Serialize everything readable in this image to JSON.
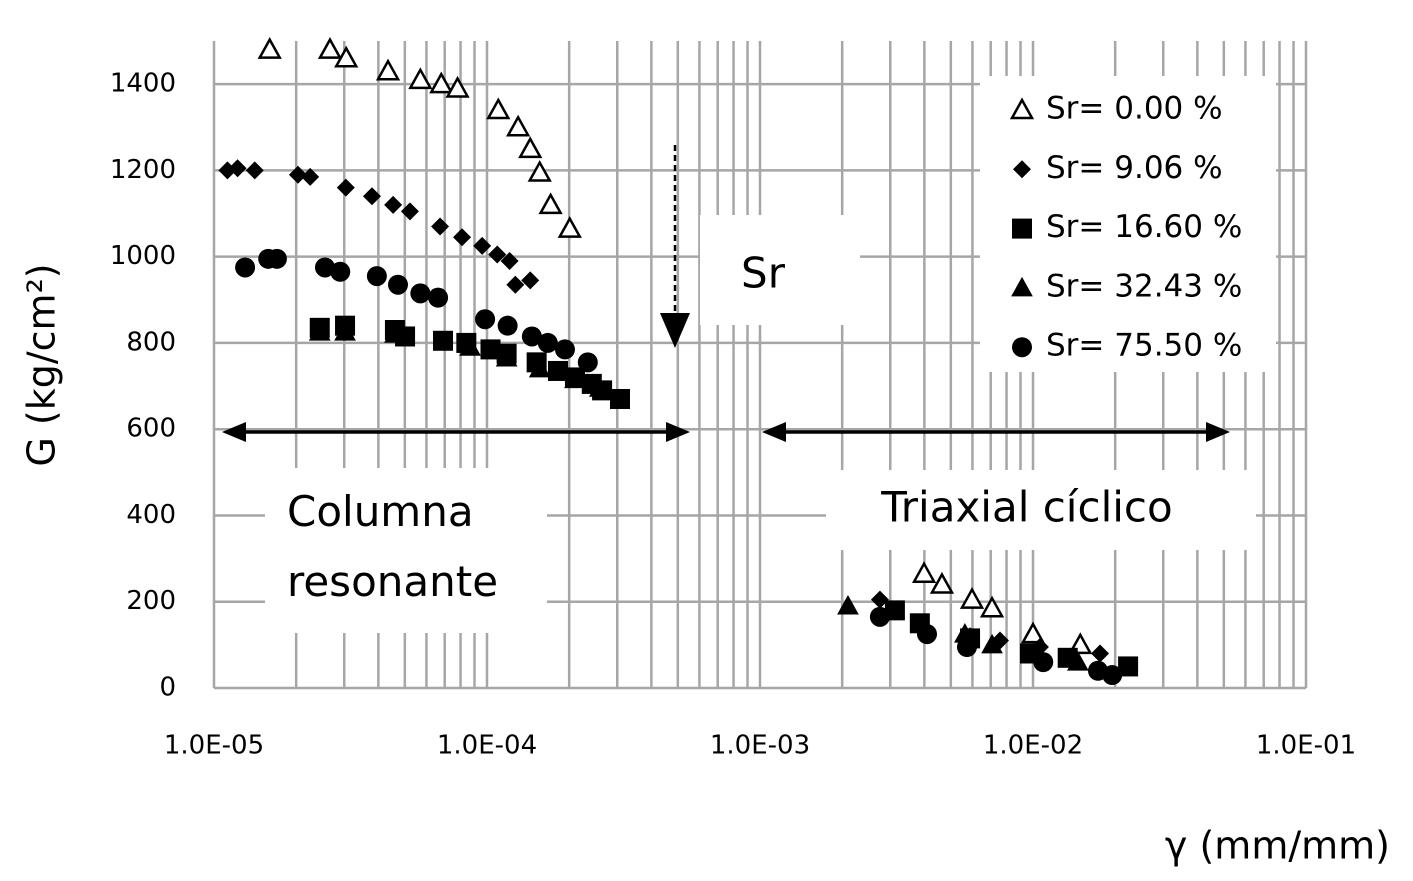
{
  "chart_data": {
    "type": "scatter",
    "xscale": "log",
    "grid": true,
    "legend": "top-right",
    "xlabel": "γ (mm/mm)",
    "ylabel": "G (kg/cm²)",
    "xlim": [
      1e-05,
      0.1
    ],
    "ylim": [
      0,
      1500
    ],
    "xticks": [
      {
        "value": 1e-05,
        "label": "1.0E-05"
      },
      {
        "value": 0.0001,
        "label": "1.0E-04"
      },
      {
        "value": 0.001,
        "label": "1.0E-03"
      },
      {
        "value": 0.01,
        "label": "1.0E-02"
      },
      {
        "value": 0.1,
        "label": "1.0E-01"
      }
    ],
    "yticks": [
      0,
      200,
      400,
      600,
      800,
      1000,
      1200,
      1400
    ],
    "annotations": [
      "Sr",
      "Columna resonante",
      "Triaxial cíclico"
    ],
    "series": [
      {
        "name": "Sr= 0.00 %",
        "color": "#000000",
        "marker": "triangle-open",
        "x": [
          1.6e-05,
          2.66e-05,
          3.05e-05,
          4.34e-05,
          5.7e-05,
          6.8e-05,
          7.8e-05,
          0.00011,
          0.00013,
          0.000144,
          0.000156,
          0.000171,
          0.000201,
          0.00399,
          0.00464,
          0.00598,
          0.00708,
          0.01,
          0.0149
        ],
        "values": [
          1480,
          1480,
          1460,
          1430,
          1410,
          1400,
          1390,
          1340,
          1300,
          1250,
          1195,
          1120,
          1065,
          265,
          240,
          205,
          185,
          125,
          100
        ]
      },
      {
        "name": "Sr= 9.06 %",
        "color": "#000000",
        "marker": "diamond",
        "x": [
          1.12e-05,
          1.22e-05,
          1.41e-05,
          2.03e-05,
          2.25e-05,
          3.04e-05,
          3.79e-05,
          4.53e-05,
          5.22e-05,
          6.73e-05,
          8.1e-05,
          9.6e-05,
          0.000109,
          0.000121,
          0.000127,
          0.000144,
          0.00275,
          0.00588,
          0.00757,
          0.0106,
          0.0176
        ],
        "values": [
          1200,
          1205,
          1200,
          1190,
          1185,
          1160,
          1140,
          1120,
          1105,
          1070,
          1045,
          1025,
          1005,
          990,
          935,
          945,
          205,
          120,
          110,
          95,
          80
        ]
      },
      {
        "name": "Sr= 16.60 %",
        "color": "#000000",
        "marker": "square",
        "x": [
          2.44e-05,
          3.02e-05,
          4.6e-05,
          5.01e-05,
          6.9e-05,
          8.4e-05,
          0.000103,
          0.000118,
          0.000152,
          0.000182,
          0.00021,
          0.000242,
          0.000264,
          0.000307,
          0.00312,
          0.00385,
          0.00588,
          0.00975,
          0.0134,
          0.0223
        ],
        "values": [
          835,
          840,
          830,
          815,
          805,
          800,
          785,
          775,
          755,
          735,
          720,
          705,
          690,
          670,
          180,
          150,
          115,
          80,
          70,
          50
        ]
      },
      {
        "name": "Sr= 32.43 %",
        "color": "#000000",
        "marker": "triangle",
        "x": [
          2.44e-05,
          3.02e-05,
          4.6e-05,
          8.67e-05,
          0.000118,
          0.000156,
          0.00021,
          0.000259,
          0.0021,
          0.00563,
          0.00708,
          0.0146
        ],
        "values": [
          825,
          825,
          820,
          790,
          765,
          740,
          715,
          695,
          190,
          125,
          100,
          60
        ]
      },
      {
        "name": "Sr= 75.50 %",
        "color": "#000000",
        "marker": "circle",
        "x": [
          1.3e-05,
          1.58e-05,
          1.7e-05,
          2.55e-05,
          2.9e-05,
          3.95e-05,
          4.72e-05,
          5.7e-05,
          6.62e-05,
          9.84e-05,
          0.000119,
          0.000146,
          0.000167,
          0.000193,
          0.000234,
          0.00275,
          0.00409,
          0.00573,
          0.0109,
          0.0173,
          0.0195
        ],
        "values": [
          975,
          995,
          995,
          975,
          965,
          955,
          935,
          915,
          905,
          855,
          840,
          815,
          800,
          785,
          755,
          165,
          125,
          95,
          60,
          40,
          30
        ]
      }
    ]
  }
}
